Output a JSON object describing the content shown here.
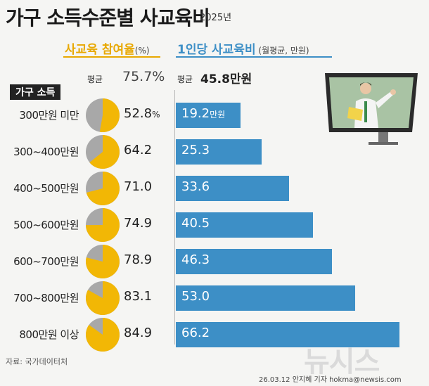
{
  "title": "가구 소득수준별 사교육비",
  "year": "2025년",
  "col1": {
    "heading": "사교육 참여율",
    "unit": "(%)",
    "avg_label": "평균",
    "avg_value": "75.7%"
  },
  "col2": {
    "heading": "1인당 사교육비",
    "unit": " (월평균, 만원)",
    "avg_label": "평균",
    "avg_value": "45.8만원"
  },
  "income_header": "가구 소득",
  "source": "자료: 국가데이터처",
  "credit": "26.03.12 안지혜 기자 hokma@newsis.com",
  "watermark": "뉴시스",
  "colors": {
    "pie_fill": "#f2b705",
    "pie_rest": "#a8a8a8",
    "bar": "#3d8fc6",
    "accent_yellow": "#e8a800"
  },
  "rows": [
    {
      "label": "300만원 미만",
      "pct": "52.8",
      "pct_suffix": "%",
      "spend": "19.2",
      "spend_suffix": "만원"
    },
    {
      "label": "300~400만원",
      "pct": "64.2",
      "pct_suffix": "",
      "spend": "25.3",
      "spend_suffix": ""
    },
    {
      "label": "400~500만원",
      "pct": "71.0",
      "pct_suffix": "",
      "spend": "33.6",
      "spend_suffix": ""
    },
    {
      "label": "500~600만원",
      "pct": "74.9",
      "pct_suffix": "",
      "spend": "40.5",
      "spend_suffix": ""
    },
    {
      "label": "600~700만원",
      "pct": "78.9",
      "pct_suffix": "",
      "spend": "46.3",
      "spend_suffix": ""
    },
    {
      "label": "700~800만원",
      "pct": "83.1",
      "pct_suffix": "",
      "spend": "53.0",
      "spend_suffix": ""
    },
    {
      "label": "800만원 이상",
      "pct": "84.9",
      "pct_suffix": "",
      "spend": "66.2",
      "spend_suffix": ""
    }
  ],
  "chart_data": [
    {
      "type": "pie",
      "title": "사교육 참여율",
      "unit": "%",
      "categories": [
        "300만원 미만",
        "300~400만원",
        "400~500만원",
        "500~600만원",
        "600~700만원",
        "700~800만원",
        "800만원 이상"
      ],
      "values": [
        52.8,
        64.2,
        71.0,
        74.9,
        78.9,
        83.1,
        84.9
      ],
      "average": 75.7
    },
    {
      "type": "bar",
      "orientation": "horizontal",
      "title": "1인당 사교육비",
      "unit": "월평균, 만원",
      "categories": [
        "300만원 미만",
        "300~400만원",
        "400~500만원",
        "500~600만원",
        "600~700만원",
        "700~800만원",
        "800만원 이상"
      ],
      "values": [
        19.2,
        25.3,
        33.6,
        40.5,
        46.3,
        53.0,
        66.2
      ],
      "average": 45.8,
      "xlim": [
        0,
        70
      ]
    }
  ]
}
